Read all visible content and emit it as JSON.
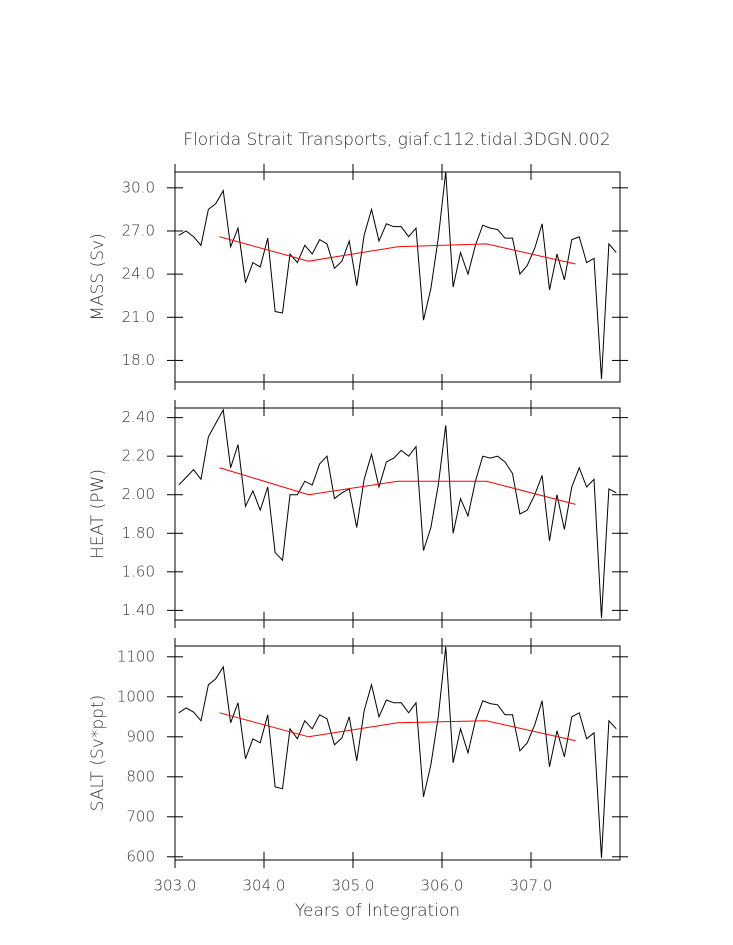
{
  "chart_data": [
    {
      "type": "line",
      "title": "Florida Strait Transports, giaf.c112.tidal.3DGN.002",
      "ylabel": "MASS (Sv)",
      "xlim": [
        303.0,
        308.0
      ],
      "xticks": [
        303,
        304,
        305,
        306,
        307
      ],
      "ylim": [
        16.5,
        31.1
      ],
      "yticks": [
        {
          "value": 18,
          "label": "18.0"
        },
        {
          "value": 21,
          "label": "21.0"
        },
        {
          "value": 24,
          "label": "24.0"
        },
        {
          "value": 27,
          "label": "27.0"
        },
        {
          "value": 30,
          "label": "30.0"
        }
      ],
      "series": [
        {
          "color": "#000000",
          "x": [
            303.042,
            303.125,
            303.208,
            303.292,
            303.375,
            303.458,
            303.542,
            303.625,
            303.708,
            303.792,
            303.875,
            303.958,
            304.042,
            304.125,
            304.208,
            304.292,
            304.375,
            304.458,
            304.542,
            304.625,
            304.708,
            304.792,
            304.875,
            304.958,
            305.042,
            305.125,
            305.208,
            305.292,
            305.375,
            305.458,
            305.542,
            305.625,
            305.708,
            305.792,
            305.875,
            305.958,
            306.042,
            306.125,
            306.208,
            306.292,
            306.375,
            306.458,
            306.542,
            306.625,
            306.708,
            306.792,
            306.875,
            306.958,
            307.042,
            307.125,
            307.208,
            307.292,
            307.375,
            307.458,
            307.542,
            307.625,
            307.708,
            307.792,
            307.875,
            307.958
          ],
          "values": [
            26.7,
            27.0,
            26.6,
            26.0,
            28.5,
            28.9,
            29.8,
            25.9,
            27.2,
            23.4,
            24.8,
            24.5,
            26.5,
            21.4,
            21.3,
            25.4,
            24.8,
            26.0,
            25.4,
            26.4,
            26.1,
            24.4,
            24.9,
            26.3,
            23.2,
            26.7,
            28.5,
            26.3,
            27.5,
            27.3,
            27.3,
            26.6,
            27.2,
            20.8,
            23.0,
            26.5,
            31.1,
            23.1,
            25.5,
            24.0,
            26.0,
            27.4,
            27.2,
            27.1,
            26.5,
            26.5,
            24.0,
            24.6,
            25.8,
            27.5,
            22.9,
            25.4,
            23.6,
            26.4,
            26.6,
            24.8,
            25.1,
            16.7,
            26.1,
            25.5
          ]
        },
        {
          "color": "#ff0000",
          "x": [
            303.5,
            304.5,
            305.5,
            306.5,
            307.5
          ],
          "values": [
            26.6,
            24.9,
            25.9,
            26.1,
            24.7
          ]
        }
      ]
    },
    {
      "type": "line",
      "ylabel": "HEAT (PW)",
      "xlim": [
        303.0,
        308.0
      ],
      "xticks": [
        303,
        304,
        305,
        306,
        307
      ],
      "ylim": [
        1.35,
        2.45
      ],
      "yticks": [
        {
          "value": 1.4,
          "label": "1.40"
        },
        {
          "value": 1.6,
          "label": "1.60"
        },
        {
          "value": 1.8,
          "label": "1.80"
        },
        {
          "value": 2.0,
          "label": "2.00"
        },
        {
          "value": 2.2,
          "label": "2.20"
        },
        {
          "value": 2.4,
          "label": "2.40"
        }
      ],
      "series": [
        {
          "color": "#000000",
          "x": [
            303.042,
            303.125,
            303.208,
            303.292,
            303.375,
            303.458,
            303.542,
            303.625,
            303.708,
            303.792,
            303.875,
            303.958,
            304.042,
            304.125,
            304.208,
            304.292,
            304.375,
            304.458,
            304.542,
            304.625,
            304.708,
            304.792,
            304.875,
            304.958,
            305.042,
            305.125,
            305.208,
            305.292,
            305.375,
            305.458,
            305.542,
            305.625,
            305.708,
            305.792,
            305.875,
            305.958,
            306.042,
            306.125,
            306.208,
            306.292,
            306.375,
            306.458,
            306.542,
            306.625,
            306.708,
            306.792,
            306.875,
            306.958,
            307.042,
            307.125,
            307.208,
            307.292,
            307.375,
            307.458,
            307.542,
            307.625,
            307.708,
            307.792,
            307.875,
            307.958
          ],
          "values": [
            2.05,
            2.09,
            2.13,
            2.08,
            2.3,
            2.37,
            2.44,
            2.14,
            2.26,
            1.94,
            2.02,
            1.92,
            2.04,
            1.7,
            1.66,
            2.0,
            2.0,
            2.07,
            2.05,
            2.16,
            2.2,
            1.98,
            2.01,
            2.03,
            1.83,
            2.08,
            2.21,
            2.04,
            2.17,
            2.19,
            2.23,
            2.2,
            2.25,
            1.71,
            1.83,
            2.05,
            2.36,
            1.8,
            1.98,
            1.89,
            2.07,
            2.2,
            2.19,
            2.2,
            2.17,
            2.11,
            1.9,
            1.92,
            2.0,
            2.1,
            1.76,
            2.0,
            1.82,
            2.04,
            2.14,
            2.04,
            2.08,
            1.36,
            2.03,
            2.01
          ]
        },
        {
          "color": "#ff0000",
          "x": [
            303.5,
            304.5,
            305.5,
            306.5,
            307.5
          ],
          "values": [
            2.14,
            2.0,
            2.07,
            2.07,
            1.95
          ]
        }
      ]
    },
    {
      "type": "line",
      "ylabel": "SALT (Sv*ppt)",
      "xlabel": "Years of Integration",
      "xlim": [
        303.0,
        308.0
      ],
      "xticks": [
        {
          "value": 303,
          "label": "303.0"
        },
        {
          "value": 304,
          "label": "304.0"
        },
        {
          "value": 305,
          "label": "305.0"
        },
        {
          "value": 306,
          "label": "306.0"
        },
        {
          "value": 307,
          "label": "307.0"
        }
      ],
      "ylim": [
        592,
        1127
      ],
      "yticks": [
        600,
        700,
        800,
        900,
        1000,
        1100
      ],
      "series": [
        {
          "color": "#000000",
          "x": [
            303.042,
            303.125,
            303.208,
            303.292,
            303.375,
            303.458,
            303.542,
            303.625,
            303.708,
            303.792,
            303.875,
            303.958,
            304.042,
            304.125,
            304.208,
            304.292,
            304.375,
            304.458,
            304.542,
            304.625,
            304.708,
            304.792,
            304.875,
            304.958,
            305.042,
            305.125,
            305.208,
            305.292,
            305.375,
            305.458,
            305.542,
            305.625,
            305.708,
            305.792,
            305.875,
            305.958,
            306.042,
            306.125,
            306.208,
            306.292,
            306.375,
            306.458,
            306.542,
            306.625,
            306.708,
            306.792,
            306.875,
            306.958,
            307.042,
            307.125,
            307.208,
            307.292,
            307.375,
            307.458,
            307.542,
            307.625,
            307.708,
            307.792,
            307.875,
            307.958
          ],
          "values": [
            960,
            972,
            962,
            940,
            1030,
            1045,
            1075,
            935,
            985,
            845,
            895,
            885,
            955,
            775,
            770,
            920,
            895,
            940,
            920,
            955,
            945,
            880,
            897,
            950,
            840,
            965,
            1030,
            950,
            992,
            985,
            985,
            960,
            985,
            750,
            830,
            950,
            1125,
            835,
            920,
            860,
            940,
            990,
            983,
            980,
            955,
            955,
            865,
            885,
            930,
            990,
            825,
            915,
            850,
            950,
            960,
            895,
            910,
            597,
            940,
            920
          ]
        },
        {
          "color": "#ff0000",
          "x": [
            303.5,
            304.5,
            305.5,
            306.5,
            307.5
          ],
          "values": [
            960,
            900,
            935,
            940,
            890
          ]
        }
      ]
    }
  ]
}
